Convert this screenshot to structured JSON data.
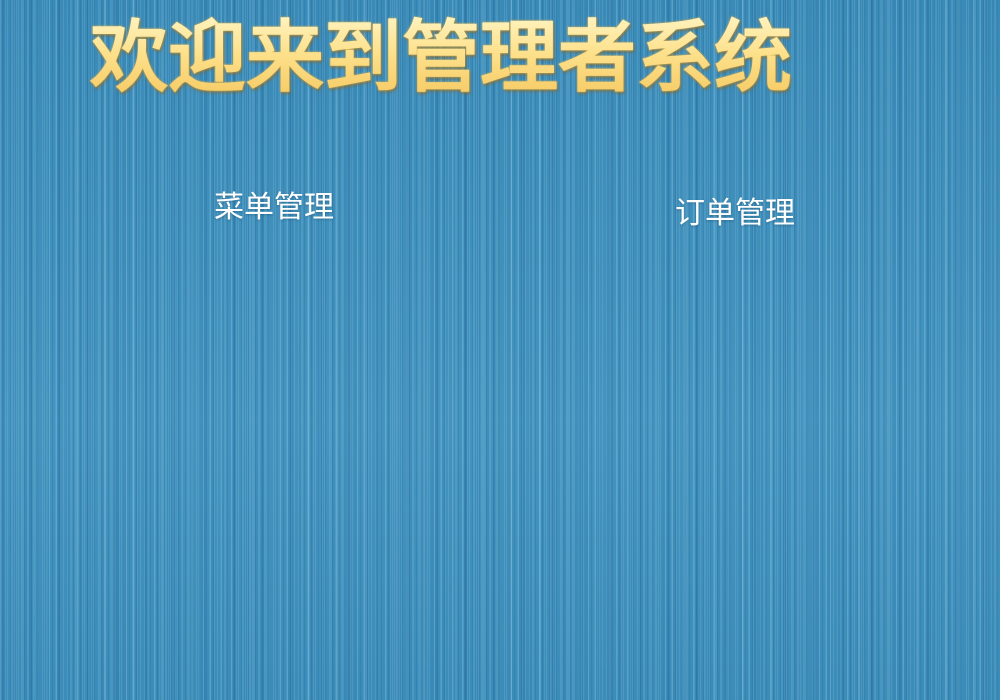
{
  "page": {
    "title": "欢迎来到管理者系统"
  },
  "nav": {
    "menu_management": "菜单管理",
    "order_management": "订单管理"
  },
  "theme": {
    "background": "#3f8fbb",
    "title_color": "#fde28c",
    "link_color": "#ffffff"
  }
}
